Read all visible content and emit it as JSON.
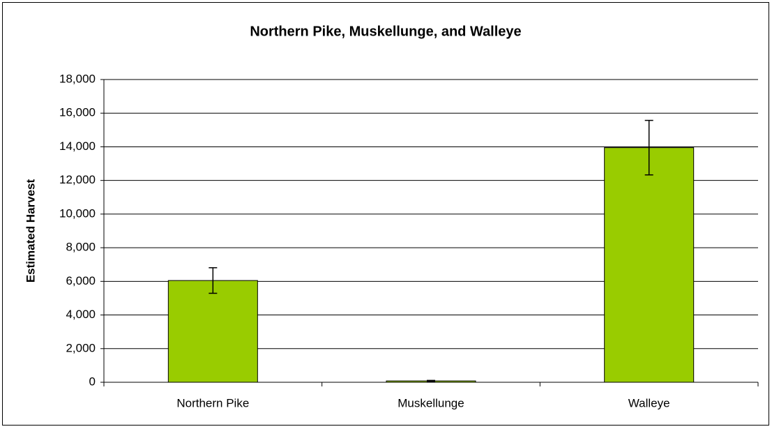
{
  "chart_data": {
    "type": "bar",
    "title": "Northern Pike, Muskellunge, and Walleye",
    "y_label": "Estimated Harvest",
    "categories": [
      "Northern Pike",
      "Muskellunge",
      "Walleye"
    ],
    "values": [
      6050,
      80,
      13950
    ],
    "errors": [
      760,
      30,
      1620
    ],
    "color": "#99cc00",
    "ylim": [
      0,
      18000
    ],
    "yticks": [
      0,
      {
        "value": 2000,
        "label": "2,000"
      },
      {
        "value": 4000,
        "label": "4,000"
      },
      {
        "value": 6000,
        "label": "6,000"
      },
      {
        "value": 8000,
        "label": "8,000"
      },
      {
        "value": 10000,
        "label": "10,000"
      },
      {
        "value": 12000,
        "label": "12,000"
      },
      {
        "value": 14000,
        "label": "14,000"
      },
      {
        "value": 16000,
        "label": "16,000"
      },
      {
        "value": 18000,
        "label": "18,000"
      }
    ],
    "grid": true
  }
}
